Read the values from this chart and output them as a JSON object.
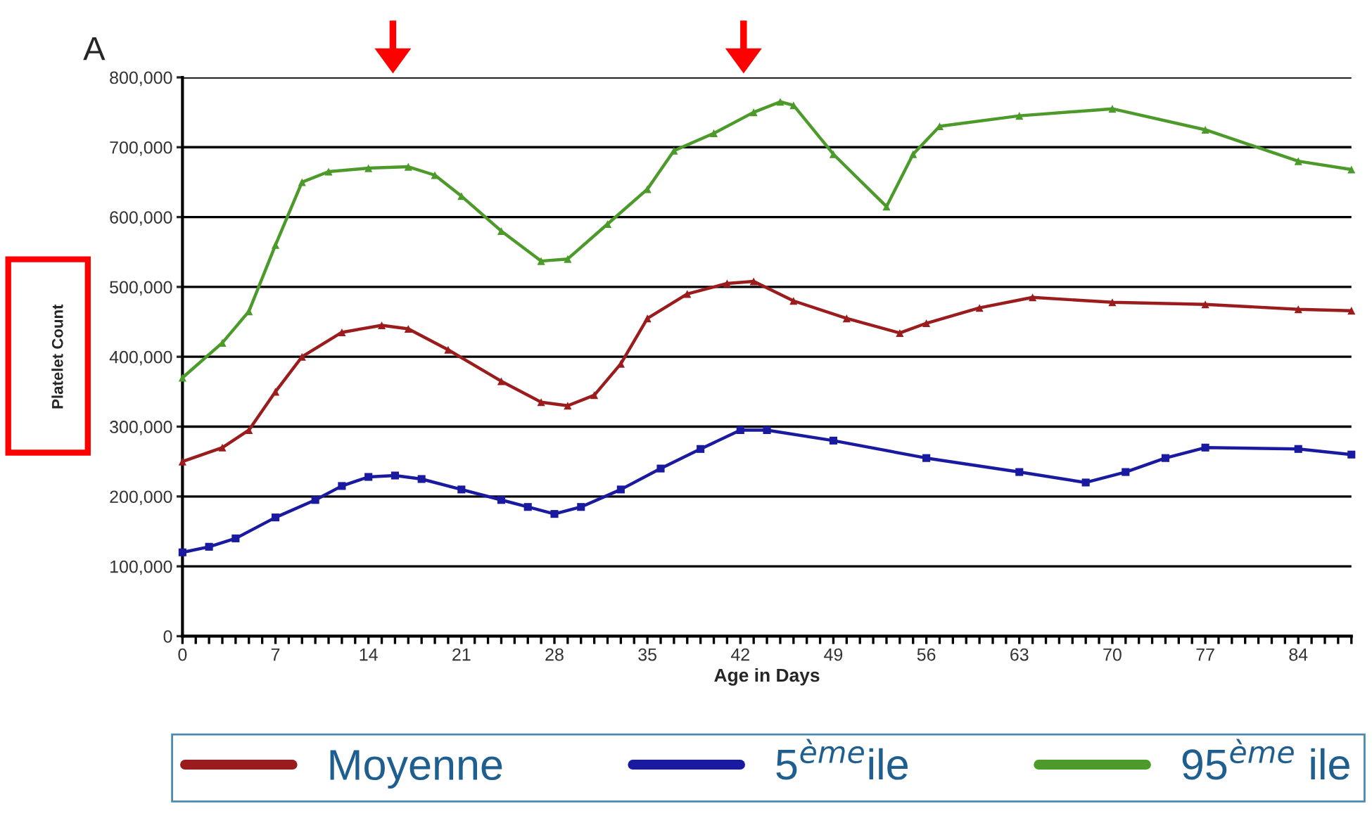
{
  "chart_data": {
    "type": "line",
    "title": "A",
    "xlabel": "Age in Days",
    "ylabel": "Platelet Count",
    "xlim": [
      0,
      88
    ],
    "ylim": [
      0,
      800000
    ],
    "xticks": [
      0,
      {
        "value": 1,
        "label": null
      },
      {
        "value": 2,
        "label": null
      },
      {
        "value": 3,
        "label": null
      },
      {
        "value": 4,
        "label": null
      },
      {
        "value": 5,
        "label": null
      },
      {
        "value": 6,
        "label": null
      },
      7,
      {
        "value": 8,
        "label": null
      },
      {
        "value": 9,
        "label": null
      },
      {
        "value": 10,
        "label": null
      },
      {
        "value": 11,
        "label": null
      },
      {
        "value": 12,
        "label": null
      },
      {
        "value": 13,
        "label": null
      },
      14,
      {
        "value": 15,
        "label": null
      },
      {
        "value": 16,
        "label": null
      },
      {
        "value": 17,
        "label": null
      },
      {
        "value": 18,
        "label": null
      },
      {
        "value": 19,
        "label": null
      },
      {
        "value": 20,
        "label": null
      },
      21,
      {
        "value": 22,
        "label": null
      },
      {
        "value": 23,
        "label": null
      },
      {
        "value": 24,
        "label": null
      },
      {
        "value": 25,
        "label": null
      },
      {
        "value": 26,
        "label": null
      },
      {
        "value": 27,
        "label": null
      },
      28,
      {
        "value": 29,
        "label": null
      },
      {
        "value": 30,
        "label": null
      },
      {
        "value": 31,
        "label": null
      },
      {
        "value": 32,
        "label": null
      },
      {
        "value": 33,
        "label": null
      },
      {
        "value": 34,
        "label": null
      },
      35,
      {
        "value": 36,
        "label": null
      },
      {
        "value": 37,
        "label": null
      },
      {
        "value": 38,
        "label": null
      },
      {
        "value": 39,
        "label": null
      },
      {
        "value": 40,
        "label": null
      },
      {
        "value": 41,
        "label": null
      },
      42,
      {
        "value": 43,
        "label": null
      },
      {
        "value": 44,
        "label": null
      },
      {
        "value": 45,
        "label": null
      },
      {
        "value": 46,
        "label": null
      },
      {
        "value": 47,
        "label": null
      },
      {
        "value": 48,
        "label": null
      },
      49,
      {
        "value": 50,
        "label": null
      },
      {
        "value": 51,
        "label": null
      },
      {
        "value": 52,
        "label": null
      },
      {
        "value": 53,
        "label": null
      },
      {
        "value": 54,
        "label": null
      },
      {
        "value": 55,
        "label": null
      },
      56,
      {
        "value": 57,
        "label": null
      },
      {
        "value": 58,
        "label": null
      },
      {
        "value": 59,
        "label": null
      },
      {
        "value": 60,
        "label": null
      },
      {
        "value": 61,
        "label": null
      },
      {
        "value": 62,
        "label": null
      },
      63,
      {
        "value": 64,
        "label": null
      },
      {
        "value": 65,
        "label": null
      },
      {
        "value": 66,
        "label": null
      },
      {
        "value": 67,
        "label": null
      },
      {
        "value": 68,
        "label": null
      },
      {
        "value": 69,
        "label": null
      },
      70,
      {
        "value": 71,
        "label": null
      },
      {
        "value": 72,
        "label": null
      },
      {
        "value": 73,
        "label": null
      },
      {
        "value": 74,
        "label": null
      },
      {
        "value": 75,
        "label": null
      },
      {
        "value": 76,
        "label": null
      },
      77,
      {
        "value": 78,
        "label": null
      },
      {
        "value": 79,
        "label": null
      },
      {
        "value": 80,
        "label": null
      },
      {
        "value": 81,
        "label": null
      },
      {
        "value": 82,
        "label": null
      },
      {
        "value": 83,
        "label": null
      },
      84,
      {
        "value": 85,
        "label": null
      },
      {
        "value": 86,
        "label": null
      },
      {
        "value": 87,
        "label": null
      },
      {
        "value": 88,
        "label": null
      }
    ],
    "yticks": [
      0,
      {
        "value": 100000,
        "label": "100,000"
      },
      {
        "value": 200000,
        "label": "200,000"
      },
      {
        "value": 300000,
        "label": "300,000"
      },
      {
        "value": 400000,
        "label": "400,000"
      },
      {
        "value": 500000,
        "label": "500,000"
      },
      {
        "value": 600000,
        "label": "600,000"
      },
      {
        "value": 700000,
        "label": "700,000"
      },
      {
        "value": 800000,
        "label": "800,000"
      }
    ],
    "grid": "y",
    "legend": "bottom",
    "line_style": "solid",
    "series": [
      {
        "name": "Moyenne",
        "color": "#9b1c1c",
        "marker": "triangle",
        "x": [
          0,
          3,
          5,
          7,
          9,
          12,
          15,
          17,
          20,
          24,
          27,
          29,
          31,
          33,
          35,
          38,
          41,
          43,
          46,
          50,
          54,
          56,
          60,
          64,
          70,
          77,
          84,
          88
        ],
        "values": [
          250000,
          270000,
          295000,
          350000,
          400000,
          435000,
          445000,
          440000,
          410000,
          365000,
          335000,
          330000,
          345000,
          390000,
          455000,
          490000,
          505000,
          508000,
          480000,
          455000,
          434000,
          448000,
          470000,
          485000,
          478000,
          475000,
          468000,
          466000
        ]
      },
      {
        "name": "5$^{ème}$ile",
        "color": "#1a1aa0",
        "marker": "square",
        "x": [
          0,
          2,
          4,
          7,
          10,
          12,
          14,
          16,
          18,
          21,
          24,
          26,
          28,
          30,
          33,
          36,
          39,
          42,
          44,
          49,
          56,
          63,
          68,
          71,
          74,
          77,
          84,
          88
        ],
        "values": [
          120000,
          128000,
          140000,
          170000,
          195000,
          215000,
          228000,
          230000,
          225000,
          210000,
          195000,
          185000,
          175000,
          185000,
          210000,
          240000,
          268000,
          295000,
          295000,
          280000,
          255000,
          235000,
          220000,
          235000,
          255000,
          270000,
          268000,
          260000
        ]
      },
      {
        "name": "95$^{ème}$ ile",
        "color": "#4c9a2a",
        "marker": "triangle",
        "x": [
          0,
          3,
          5,
          7,
          9,
          11,
          14,
          17,
          19,
          21,
          24,
          27,
          29,
          32,
          35,
          37,
          40,
          43,
          45,
          46,
          49,
          53,
          55,
          57,
          63,
          70,
          77,
          84,
          88
        ],
        "values": [
          370000,
          420000,
          465000,
          560000,
          650000,
          665000,
          670000,
          672000,
          660000,
          630000,
          580000,
          537000,
          540000,
          590000,
          640000,
          695000,
          720000,
          750000,
          765000,
          760000,
          690000,
          615000,
          690000,
          730000,
          745000,
          755000,
          725000,
          680000,
          668000
        ]
      }
    ]
  }
}
